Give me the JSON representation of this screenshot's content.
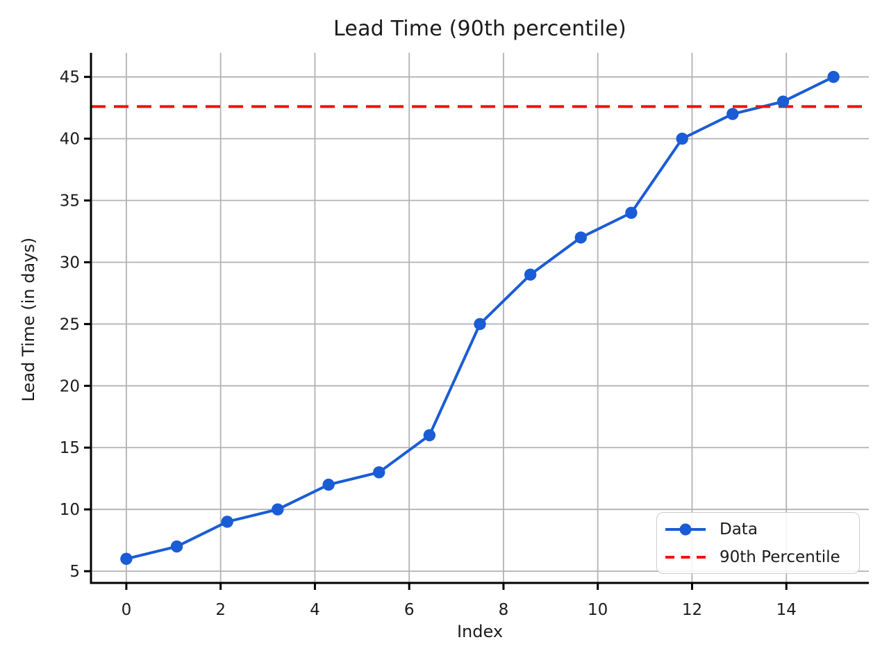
{
  "title": "Lead Time (90th percentile)",
  "axes": {
    "xlabel": "Index",
    "ylabel": "Lead Time (in days)"
  },
  "legend": {
    "items": [
      {
        "label": "Data"
      },
      {
        "label": "90th Percentile"
      }
    ]
  },
  "chart_data": {
    "type": "line",
    "title": "Lead Time (90th percentile)",
    "xlabel": "Index",
    "ylabel": "Lead Time (in days)",
    "x": [
      0,
      1.07,
      2.14,
      3.21,
      4.29,
      5.36,
      6.43,
      7.5,
      8.57,
      9.64,
      10.71,
      11.79,
      12.86,
      13.93,
      15
    ],
    "series": [
      {
        "name": "Data",
        "values": [
          6,
          7,
          9,
          10,
          12,
          13,
          16,
          25,
          29,
          32,
          34,
          40,
          42,
          43,
          45
        ]
      }
    ],
    "reference_line": {
      "name": "90th Percentile",
      "value": 42.6,
      "style": "dashed"
    },
    "xticks": [
      0,
      2,
      4,
      6,
      8,
      10,
      12,
      14
    ],
    "yticks": [
      5,
      10,
      15,
      20,
      25,
      30,
      35,
      40,
      45
    ],
    "xlim": [
      -0.75,
      15.75
    ],
    "ylim": [
      4.05,
      46.95
    ],
    "grid": true,
    "legend_position": "lower right",
    "colors": {
      "data": "#1a5cd6",
      "reference": "#f20f0f",
      "grid": "#b2b2b2",
      "text": "#1b1b1b",
      "spine": "#000000"
    }
  }
}
